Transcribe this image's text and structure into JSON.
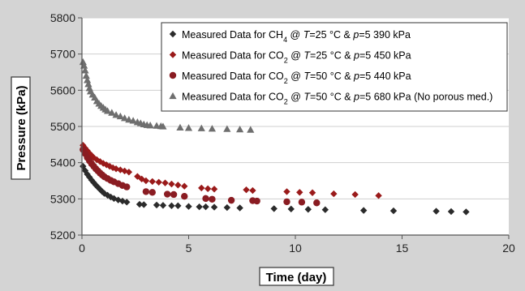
{
  "chart_data": {
    "type": "scatter",
    "xlabel": "Time (day)",
    "ylabel": "Pressure (kPa)",
    "xlim": [
      0,
      20
    ],
    "ylim": [
      5200,
      5800
    ],
    "xticks": [
      0,
      5,
      10,
      15,
      20
    ],
    "yticks": [
      5200,
      5300,
      5400,
      5500,
      5600,
      5700,
      5800
    ],
    "grid": "horizontal",
    "legend_position": "top-right",
    "series": [
      {
        "name": "Measured Data for CH4 @ T=25 °C & p=5 390 kPa",
        "legend_parts": [
          {
            "text": "Measured Data for CH"
          },
          {
            "text": "4",
            "sub": true
          },
          {
            "text": " @ "
          },
          {
            "text": "T",
            "italic": true
          },
          {
            "text": "=25 °C & "
          },
          {
            "text": "p",
            "italic": true
          },
          {
            "text": "=5 390 kPa"
          }
        ],
        "marker": "diamond",
        "color": "#2b2b2b",
        "points": [
          [
            0.05,
            5390
          ],
          [
            0.15,
            5378
          ],
          [
            0.25,
            5368
          ],
          [
            0.35,
            5360
          ],
          [
            0.45,
            5352
          ],
          [
            0.55,
            5345
          ],
          [
            0.65,
            5338
          ],
          [
            0.75,
            5332
          ],
          [
            0.85,
            5326
          ],
          [
            0.95,
            5320
          ],
          [
            1.05,
            5315
          ],
          [
            1.2,
            5310
          ],
          [
            1.35,
            5305
          ],
          [
            1.5,
            5301
          ],
          [
            1.7,
            5297
          ],
          [
            1.9,
            5294
          ],
          [
            2.1,
            5291
          ],
          [
            2.7,
            5285
          ],
          [
            2.9,
            5284
          ],
          [
            3.5,
            5283
          ],
          [
            3.8,
            5282
          ],
          [
            4.2,
            5281
          ],
          [
            4.5,
            5281
          ],
          [
            5.0,
            5279
          ],
          [
            5.5,
            5278
          ],
          [
            5.8,
            5278
          ],
          [
            6.2,
            5277
          ],
          [
            6.8,
            5276
          ],
          [
            7.4,
            5275
          ],
          [
            9.0,
            5273
          ],
          [
            9.8,
            5272
          ],
          [
            10.6,
            5271
          ],
          [
            11.4,
            5270
          ],
          [
            13.2,
            5268
          ],
          [
            14.6,
            5267
          ],
          [
            16.6,
            5266
          ],
          [
            17.3,
            5265
          ],
          [
            18.0,
            5264
          ]
        ]
      },
      {
        "name": "Measured Data for CO2 @ T=25 °C & p=5 450 kPa",
        "legend_parts": [
          {
            "text": "Measured Data for CO"
          },
          {
            "text": "2",
            "sub": true
          },
          {
            "text": " @ "
          },
          {
            "text": "T",
            "italic": true
          },
          {
            "text": "=25 °C & "
          },
          {
            "text": "p",
            "italic": true
          },
          {
            "text": "=5 450 kPa"
          }
        ],
        "marker": "diamond",
        "color": "#9a1a1a",
        "points": [
          [
            0.05,
            5448
          ],
          [
            0.15,
            5440
          ],
          [
            0.25,
            5433
          ],
          [
            0.35,
            5426
          ],
          [
            0.45,
            5420
          ],
          [
            0.55,
            5414
          ],
          [
            0.7,
            5408
          ],
          [
            0.85,
            5403
          ],
          [
            1.0,
            5398
          ],
          [
            1.15,
            5394
          ],
          [
            1.3,
            5390
          ],
          [
            1.45,
            5386
          ],
          [
            1.6,
            5383
          ],
          [
            1.8,
            5380
          ],
          [
            2.0,
            5377
          ],
          [
            2.2,
            5374
          ],
          [
            2.6,
            5362
          ],
          [
            2.8,
            5355
          ],
          [
            3.0,
            5350
          ],
          [
            3.3,
            5348
          ],
          [
            3.6,
            5346
          ],
          [
            3.9,
            5344
          ],
          [
            4.2,
            5341
          ],
          [
            4.5,
            5338
          ],
          [
            4.8,
            5335
          ],
          [
            5.6,
            5330
          ],
          [
            5.9,
            5328
          ],
          [
            6.2,
            5327
          ],
          [
            7.7,
            5325
          ],
          [
            8.0,
            5323
          ],
          [
            9.6,
            5320
          ],
          [
            10.2,
            5318
          ],
          [
            10.8,
            5317
          ],
          [
            11.8,
            5314
          ],
          [
            12.8,
            5312
          ],
          [
            13.9,
            5309
          ]
        ]
      },
      {
        "name": "Measured Data for CO2 @ T=50 °C & p=5 440 kPa",
        "legend_parts": [
          {
            "text": "Measured Data for CO"
          },
          {
            "text": "2",
            "sub": true
          },
          {
            "text": " @ "
          },
          {
            "text": "T",
            "italic": true
          },
          {
            "text": "=50 °C & "
          },
          {
            "text": "p",
            "italic": true
          },
          {
            "text": "=5 440 kPa"
          }
        ],
        "marker": "circle",
        "color": "#8a1c22",
        "points": [
          [
            0.05,
            5436
          ],
          [
            0.15,
            5425
          ],
          [
            0.25,
            5414
          ],
          [
            0.35,
            5405
          ],
          [
            0.45,
            5397
          ],
          [
            0.55,
            5390
          ],
          [
            0.65,
            5383
          ],
          [
            0.75,
            5377
          ],
          [
            0.85,
            5371
          ],
          [
            0.95,
            5366
          ],
          [
            1.05,
            5361
          ],
          [
            1.2,
            5356
          ],
          [
            1.35,
            5351
          ],
          [
            1.5,
            5347
          ],
          [
            1.7,
            5342
          ],
          [
            1.9,
            5337
          ],
          [
            2.1,
            5333
          ],
          [
            3.0,
            5320
          ],
          [
            3.3,
            5318
          ],
          [
            4.0,
            5313
          ],
          [
            4.3,
            5312
          ],
          [
            4.8,
            5307
          ],
          [
            5.8,
            5301
          ],
          [
            6.1,
            5299
          ],
          [
            7.0,
            5296
          ],
          [
            8.0,
            5295
          ],
          [
            8.2,
            5294
          ],
          [
            9.6,
            5292
          ],
          [
            10.3,
            5291
          ],
          [
            11.0,
            5289
          ]
        ]
      },
      {
        "name": "Measured Data for CO2 @ T=50 °C & p=5 680 kPa (No porous med.)",
        "legend_parts": [
          {
            "text": "Measured Data for CO"
          },
          {
            "text": "2",
            "sub": true
          },
          {
            "text": " @ "
          },
          {
            "text": "T",
            "italic": true
          },
          {
            "text": "=50 °C & "
          },
          {
            "text": "p",
            "italic": true
          },
          {
            "text": "=5 680 kPa (No porous med.)"
          }
        ],
        "marker": "triangle",
        "color": "#6e6e6e",
        "points": [
          [
            0.05,
            5678
          ],
          [
            0.1,
            5668
          ],
          [
            0.15,
            5655
          ],
          [
            0.2,
            5640
          ],
          [
            0.25,
            5628
          ],
          [
            0.3,
            5617
          ],
          [
            0.35,
            5606
          ],
          [
            0.4,
            5597
          ],
          [
            0.5,
            5588
          ],
          [
            0.6,
            5580
          ],
          [
            0.7,
            5570
          ],
          [
            0.8,
            5563
          ],
          [
            0.9,
            5557
          ],
          [
            1.0,
            5552
          ],
          [
            1.1,
            5547
          ],
          [
            1.2,
            5543
          ],
          [
            1.4,
            5538
          ],
          [
            1.6,
            5532
          ],
          [
            1.8,
            5528
          ],
          [
            2.0,
            5523
          ],
          [
            2.2,
            5519
          ],
          [
            2.4,
            5516
          ],
          [
            2.6,
            5512
          ],
          [
            2.75,
            5509
          ],
          [
            2.9,
            5506
          ],
          [
            3.05,
            5504
          ],
          [
            3.2,
            5503
          ],
          [
            3.5,
            5502
          ],
          [
            3.7,
            5501
          ],
          [
            3.8,
            5500
          ],
          [
            4.6,
            5497
          ],
          [
            5.0,
            5496
          ],
          [
            5.6,
            5495
          ],
          [
            6.1,
            5494
          ],
          [
            6.8,
            5493
          ],
          [
            7.4,
            5492
          ],
          [
            7.9,
            5491
          ]
        ]
      }
    ]
  }
}
